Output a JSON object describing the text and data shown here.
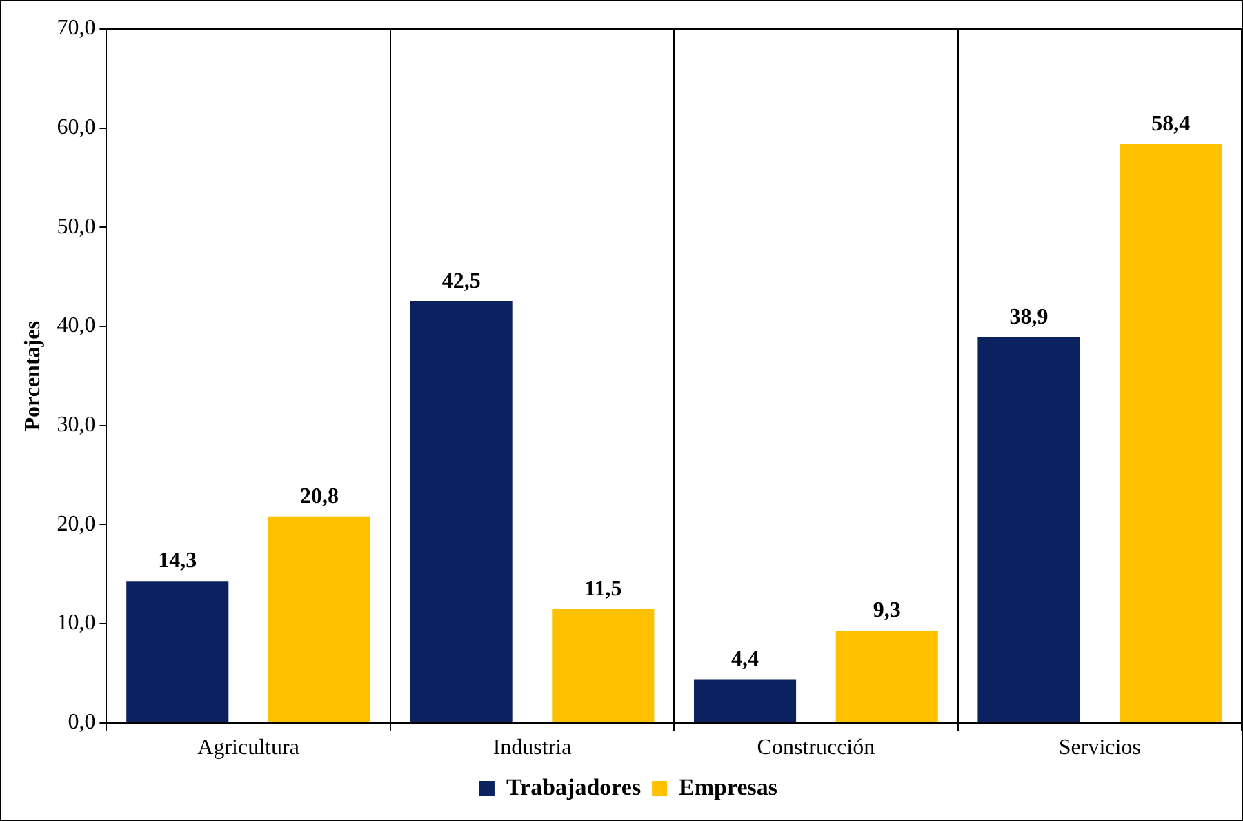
{
  "chart_data": {
    "type": "bar",
    "ylabel": "Porcentajes",
    "categories": [
      "Agricultura",
      "Industria",
      "Construcción",
      "Servicios"
    ],
    "series": [
      {
        "name": "Trabajadores",
        "color": "#0c2260",
        "values": [
          14.3,
          42.5,
          4.4,
          38.9
        ],
        "value_labels": [
          "14,3",
          "42,5",
          "4,4",
          "38,9"
        ]
      },
      {
        "name": "Empresas",
        "color": "#ffc000",
        "values": [
          20.8,
          11.5,
          9.3,
          58.4
        ],
        "value_labels": [
          "20,8",
          "11,5",
          "9,3",
          "58,4"
        ]
      }
    ],
    "ylim": [
      0,
      70
    ],
    "yticks": [
      {
        "value": 0,
        "label": "0,0"
      },
      {
        "value": 10,
        "label": "10,0"
      },
      {
        "value": 20,
        "label": "20,0"
      },
      {
        "value": 30,
        "label": "30,0"
      },
      {
        "value": 40,
        "label": "40,0"
      },
      {
        "value": 50,
        "label": "50,0"
      },
      {
        "value": 60,
        "label": "60,0"
      },
      {
        "value": 70,
        "label": "70,0"
      }
    ],
    "grid": "x",
    "legend": "bottom"
  }
}
